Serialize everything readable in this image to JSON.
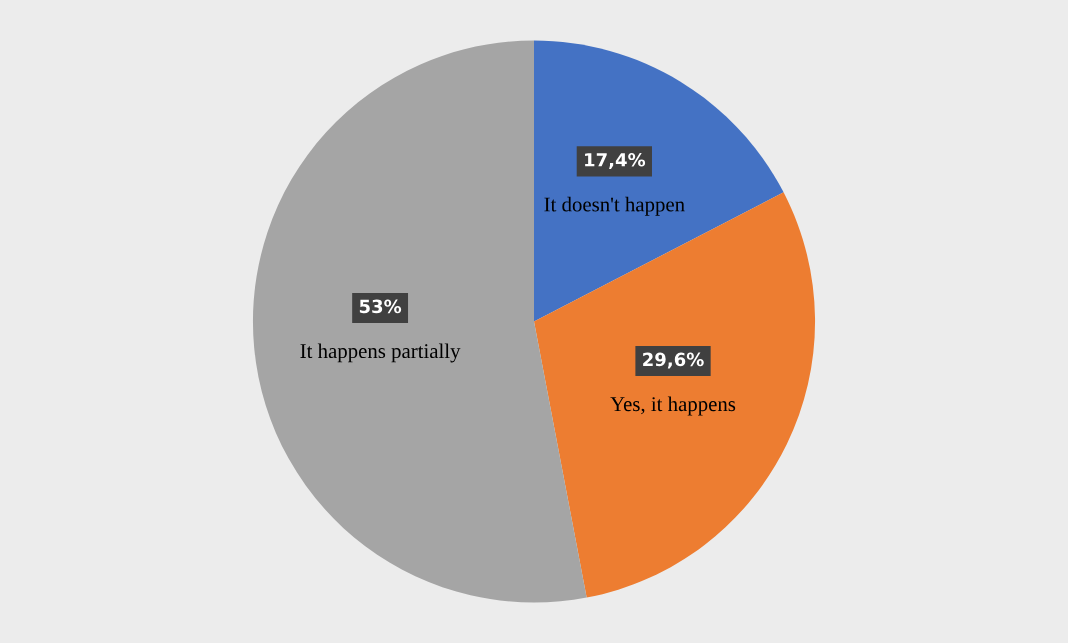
{
  "chart_data": {
    "type": "pie",
    "categories": [
      "It doesn't happen",
      "Yes, it happens",
      "It happens partially"
    ],
    "values": [
      17.4,
      29.6,
      53
    ],
    "colors": [
      "#4472c4",
      "#ed7d31",
      "#a5a5a5"
    ],
    "value_labels": [
      "17,4%",
      "29,6%",
      "53%"
    ]
  }
}
